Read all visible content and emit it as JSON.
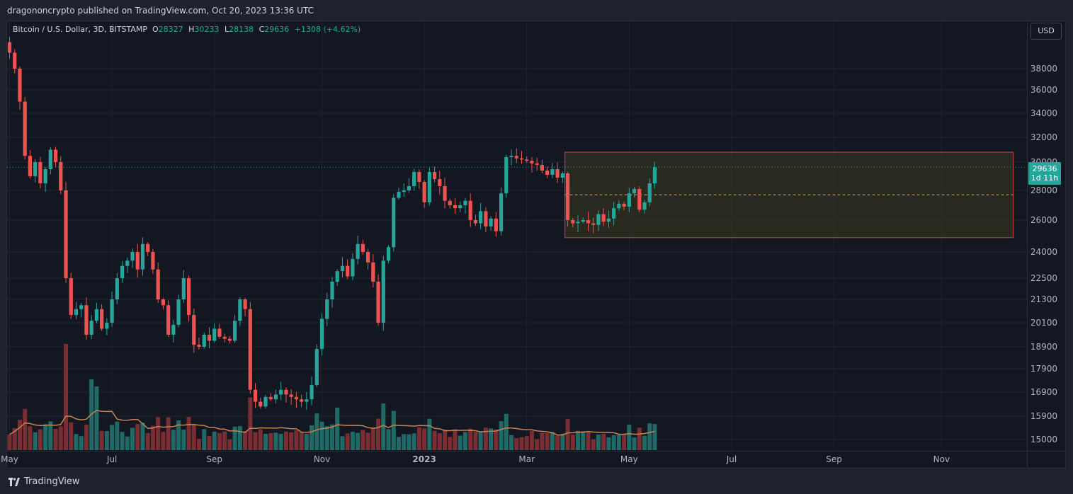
{
  "publish_line": "dragononcrypto published on TradingView.com, Oct 20, 2023 13:36 UTC",
  "legend": {
    "symbol": "Bitcoin / U.S. Dollar, 3D, BITSTAMP",
    "o_label": "O",
    "o_value": "28327",
    "h_label": "H",
    "h_value": "30233",
    "l_label": "L",
    "l_value": "28138",
    "c_label": "C",
    "c_value": "29636",
    "change": "+1308 (+4.62%)"
  },
  "currency_button": "USD",
  "last_price": {
    "price": "29636",
    "countdown": "1d 11h"
  },
  "footer": {
    "brand": "TradingView"
  },
  "colors": {
    "up": "#26a69a",
    "down": "#ef5350",
    "up_volume": "#1f6a66",
    "down_volume": "#7a2e33",
    "volume_ma": "#c68352",
    "box_fill": "#3a3a1f",
    "box_border": "#b33b3b",
    "box_mid": "#c9a227",
    "grid": "#1f2430",
    "price_line": "#26a69a"
  },
  "chart_data": {
    "type": "candlestick",
    "interval": "3D",
    "price_axis_ticks": [
      38000,
      36000,
      34000,
      32000,
      30000,
      28000,
      26000,
      24000,
      22500,
      21300,
      20100,
      18900,
      17900,
      16900,
      15900,
      15000
    ],
    "price_axis_labels": [
      "38000",
      "36000",
      "34000",
      "32000",
      "30000",
      "28000",
      "26000",
      "24000",
      "22500",
      "21300",
      "20100",
      "18900",
      "17900",
      "16900",
      "15900",
      "15000"
    ],
    "time_axis_labels": [
      "May",
      "Jul",
      "Sep",
      "Nov",
      "2023",
      "Mar",
      "May",
      "Jul",
      "Sep",
      "Nov"
    ],
    "time_label_candle_index": [
      0,
      20,
      40,
      61,
      81,
      101,
      121,
      141,
      161,
      182
    ],
    "y_range": [
      14500,
      42500
    ],
    "range_box": {
      "top": 30800,
      "bottom": 24900,
      "mid": 27700,
      "start_candle": 109,
      "end_candle": 196
    },
    "close_path": [
      39500,
      38000,
      35000,
      30500,
      29000,
      30000,
      28500,
      29500,
      31000,
      30000,
      28000,
      22500,
      20500,
      20800,
      21000,
      19500,
      20200,
      20800,
      19800,
      20100,
      21300,
      22500,
      23200,
      23500,
      24000,
      23000,
      24500,
      24000,
      23000,
      21300,
      21000,
      19500,
      20000,
      21300,
      22500,
      20500,
      19000,
      18900,
      19500,
      19200,
      19800,
      19400,
      19300,
      19200,
      20200,
      21300,
      20800,
      17000,
      16500,
      16300,
      16700,
      16600,
      16800,
      17000,
      16800,
      16700,
      16600,
      16500,
      16600,
      17200,
      18800,
      20300,
      21300,
      22300,
      22900,
      23200,
      22600,
      23600,
      24500,
      24000,
      23400,
      22300,
      20100,
      23500,
      24300,
      27500,
      27900,
      28000,
      28300,
      29300,
      28600,
      27200,
      29300,
      28800,
      28300,
      27300,
      27000,
      26800,
      27000,
      27300,
      26000,
      25800,
      26600,
      25600,
      26100,
      25300,
      27800,
      30400,
      30500,
      30300,
      30200,
      30100,
      29900,
      29800,
      29400,
      29100,
      29500,
      28900,
      29200,
      26000,
      25800,
      25900,
      26000,
      25800,
      25700,
      26400,
      25900,
      26100,
      26800,
      27100,
      26900,
      27800,
      28100,
      26700,
      27200,
      28500,
      29636
    ],
    "last_close": 29636
  }
}
